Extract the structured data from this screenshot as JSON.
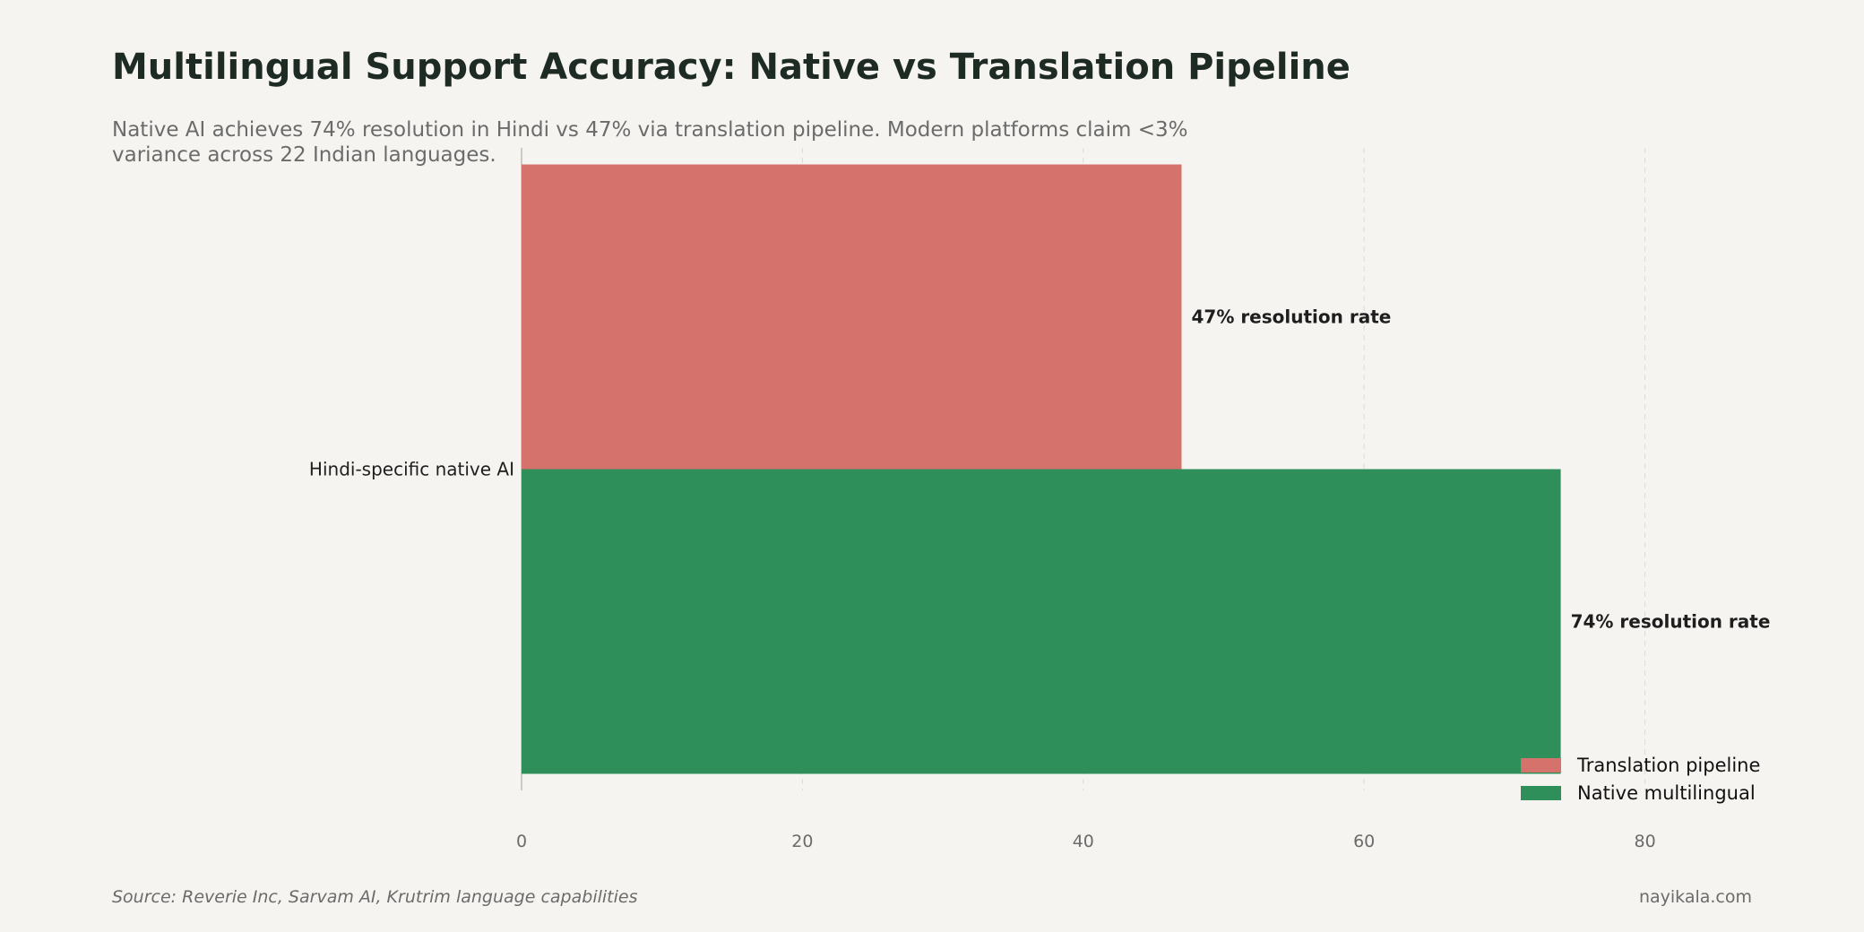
{
  "header": {
    "title": "Multilingual Support Accuracy: Native vs Translation Pipeline",
    "subtitle": "Native AI achieves 74% resolution in Hindi vs 47% via translation pipeline. Modern platforms claim <3% variance across 22 Indian languages."
  },
  "footer": {
    "source": "Source: Reverie Inc, Sarvam AI, Krutrim language capabilities",
    "brand": "nayikala.com"
  },
  "colors": {
    "translation": "#d6726c",
    "native": "#2e8f5a",
    "grid": "#dcdcd6",
    "axis": "#bdbdb8",
    "tick_text": "#6b6b6b",
    "label_text": "#1e1e1e"
  },
  "chart_data": {
    "type": "bar",
    "orientation": "horizontal",
    "categories": [
      "Hindi-specific native AI"
    ],
    "series": [
      {
        "name": "Translation pipeline",
        "values": [
          47
        ],
        "labels": [
          "47% resolution rate"
        ],
        "color": "#d6726c"
      },
      {
        "name": "Native multilingual",
        "values": [
          74
        ],
        "labels": [
          "74% resolution rate"
        ],
        "color": "#2e8f5a"
      }
    ],
    "xlim": [
      0,
      90
    ],
    "xticks": [
      0,
      20,
      40,
      60,
      80
    ],
    "grid": true,
    "legend_position": "bottom-right"
  }
}
